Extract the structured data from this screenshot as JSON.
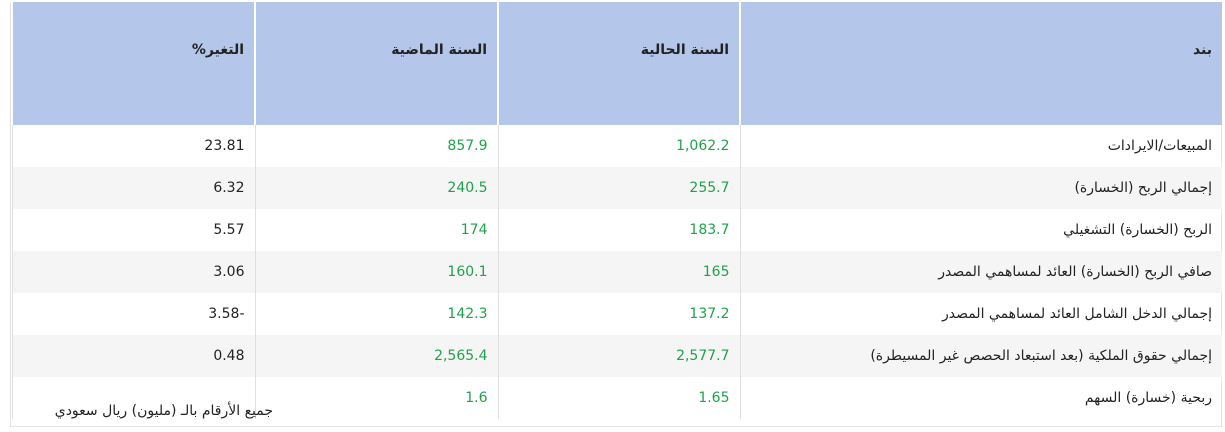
{
  "table": {
    "headers": [
      "بند",
      "السنة الحالية",
      "السنة الماضية",
      "التغير%"
    ],
    "rows": [
      [
        "المبيعات/الايرادات",
        "1,062.2",
        "857.9",
        "23.81"
      ],
      [
        "إجمالي الربح (الخسارة)",
        "255.7",
        "240.5",
        "6.32"
      ],
      [
        "الربح (الخسارة) التشغيلي",
        "183.7",
        "174",
        "5.57"
      ],
      [
        "صافي الربح (الخسارة) العائد لمساهمي المصدر",
        "165",
        "160.1",
        "3.06"
      ],
      [
        "إجمالي الدخل الشامل العائد لمساهمي المصدر",
        "137.2",
        "142.3",
        "-3.58"
      ],
      [
        "إجمالي حقوق الملكية (بعد استبعاد الحصص غير المسيطرة)",
        "2,577.7",
        "2,565.4",
        "0.48"
      ],
      [
        "ربحية (خسارة) السهم",
        "1.65",
        "1.6"
      ]
    ],
    "note": "جميع الأرقام بالـ (مليون) ريال سعودي"
  }
}
